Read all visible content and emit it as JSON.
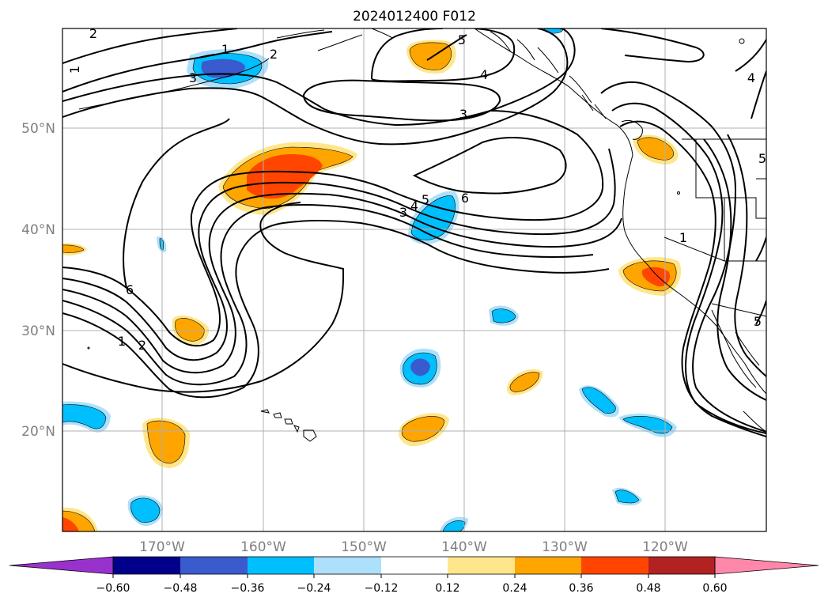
{
  "title": "2024012400 F012",
  "colors": {
    "c_lt_060": "#9932CC",
    "c_m060_m048": "#00008B",
    "c_m048_m036": "#3A5BCD",
    "c_m036_m024": "#00BFFF",
    "c_m024_m012": "#ADE0FA",
    "c_m012_012": "#FFFFFF",
    "c_012_024": "#FFE68A",
    "c_024_036": "#FFA500",
    "c_036_048": "#FF4500",
    "c_048_060": "#B22222",
    "c_gt_060": "#FF88AA"
  },
  "map": {
    "lat_labels": [
      "50°N",
      "40°N",
      "30°N",
      "20°N"
    ],
    "lon_labels": [
      "170°W",
      "160°W",
      "150°W",
      "140°W",
      "130°W",
      "120°W"
    ]
  },
  "colorbar": {
    "ticks": [
      "−0.60",
      "−0.48",
      "−0.36",
      "−0.24",
      "−0.12",
      "0.12",
      "0.24",
      "0.36",
      "0.48",
      "0.60"
    ]
  },
  "contour_labels": [
    "2",
    "1",
    "2",
    "3",
    "1",
    "5",
    "4",
    "3",
    "3",
    "4",
    "5",
    "6",
    "6",
    "1",
    "2",
    "1",
    "4",
    "5",
    "5"
  ]
}
